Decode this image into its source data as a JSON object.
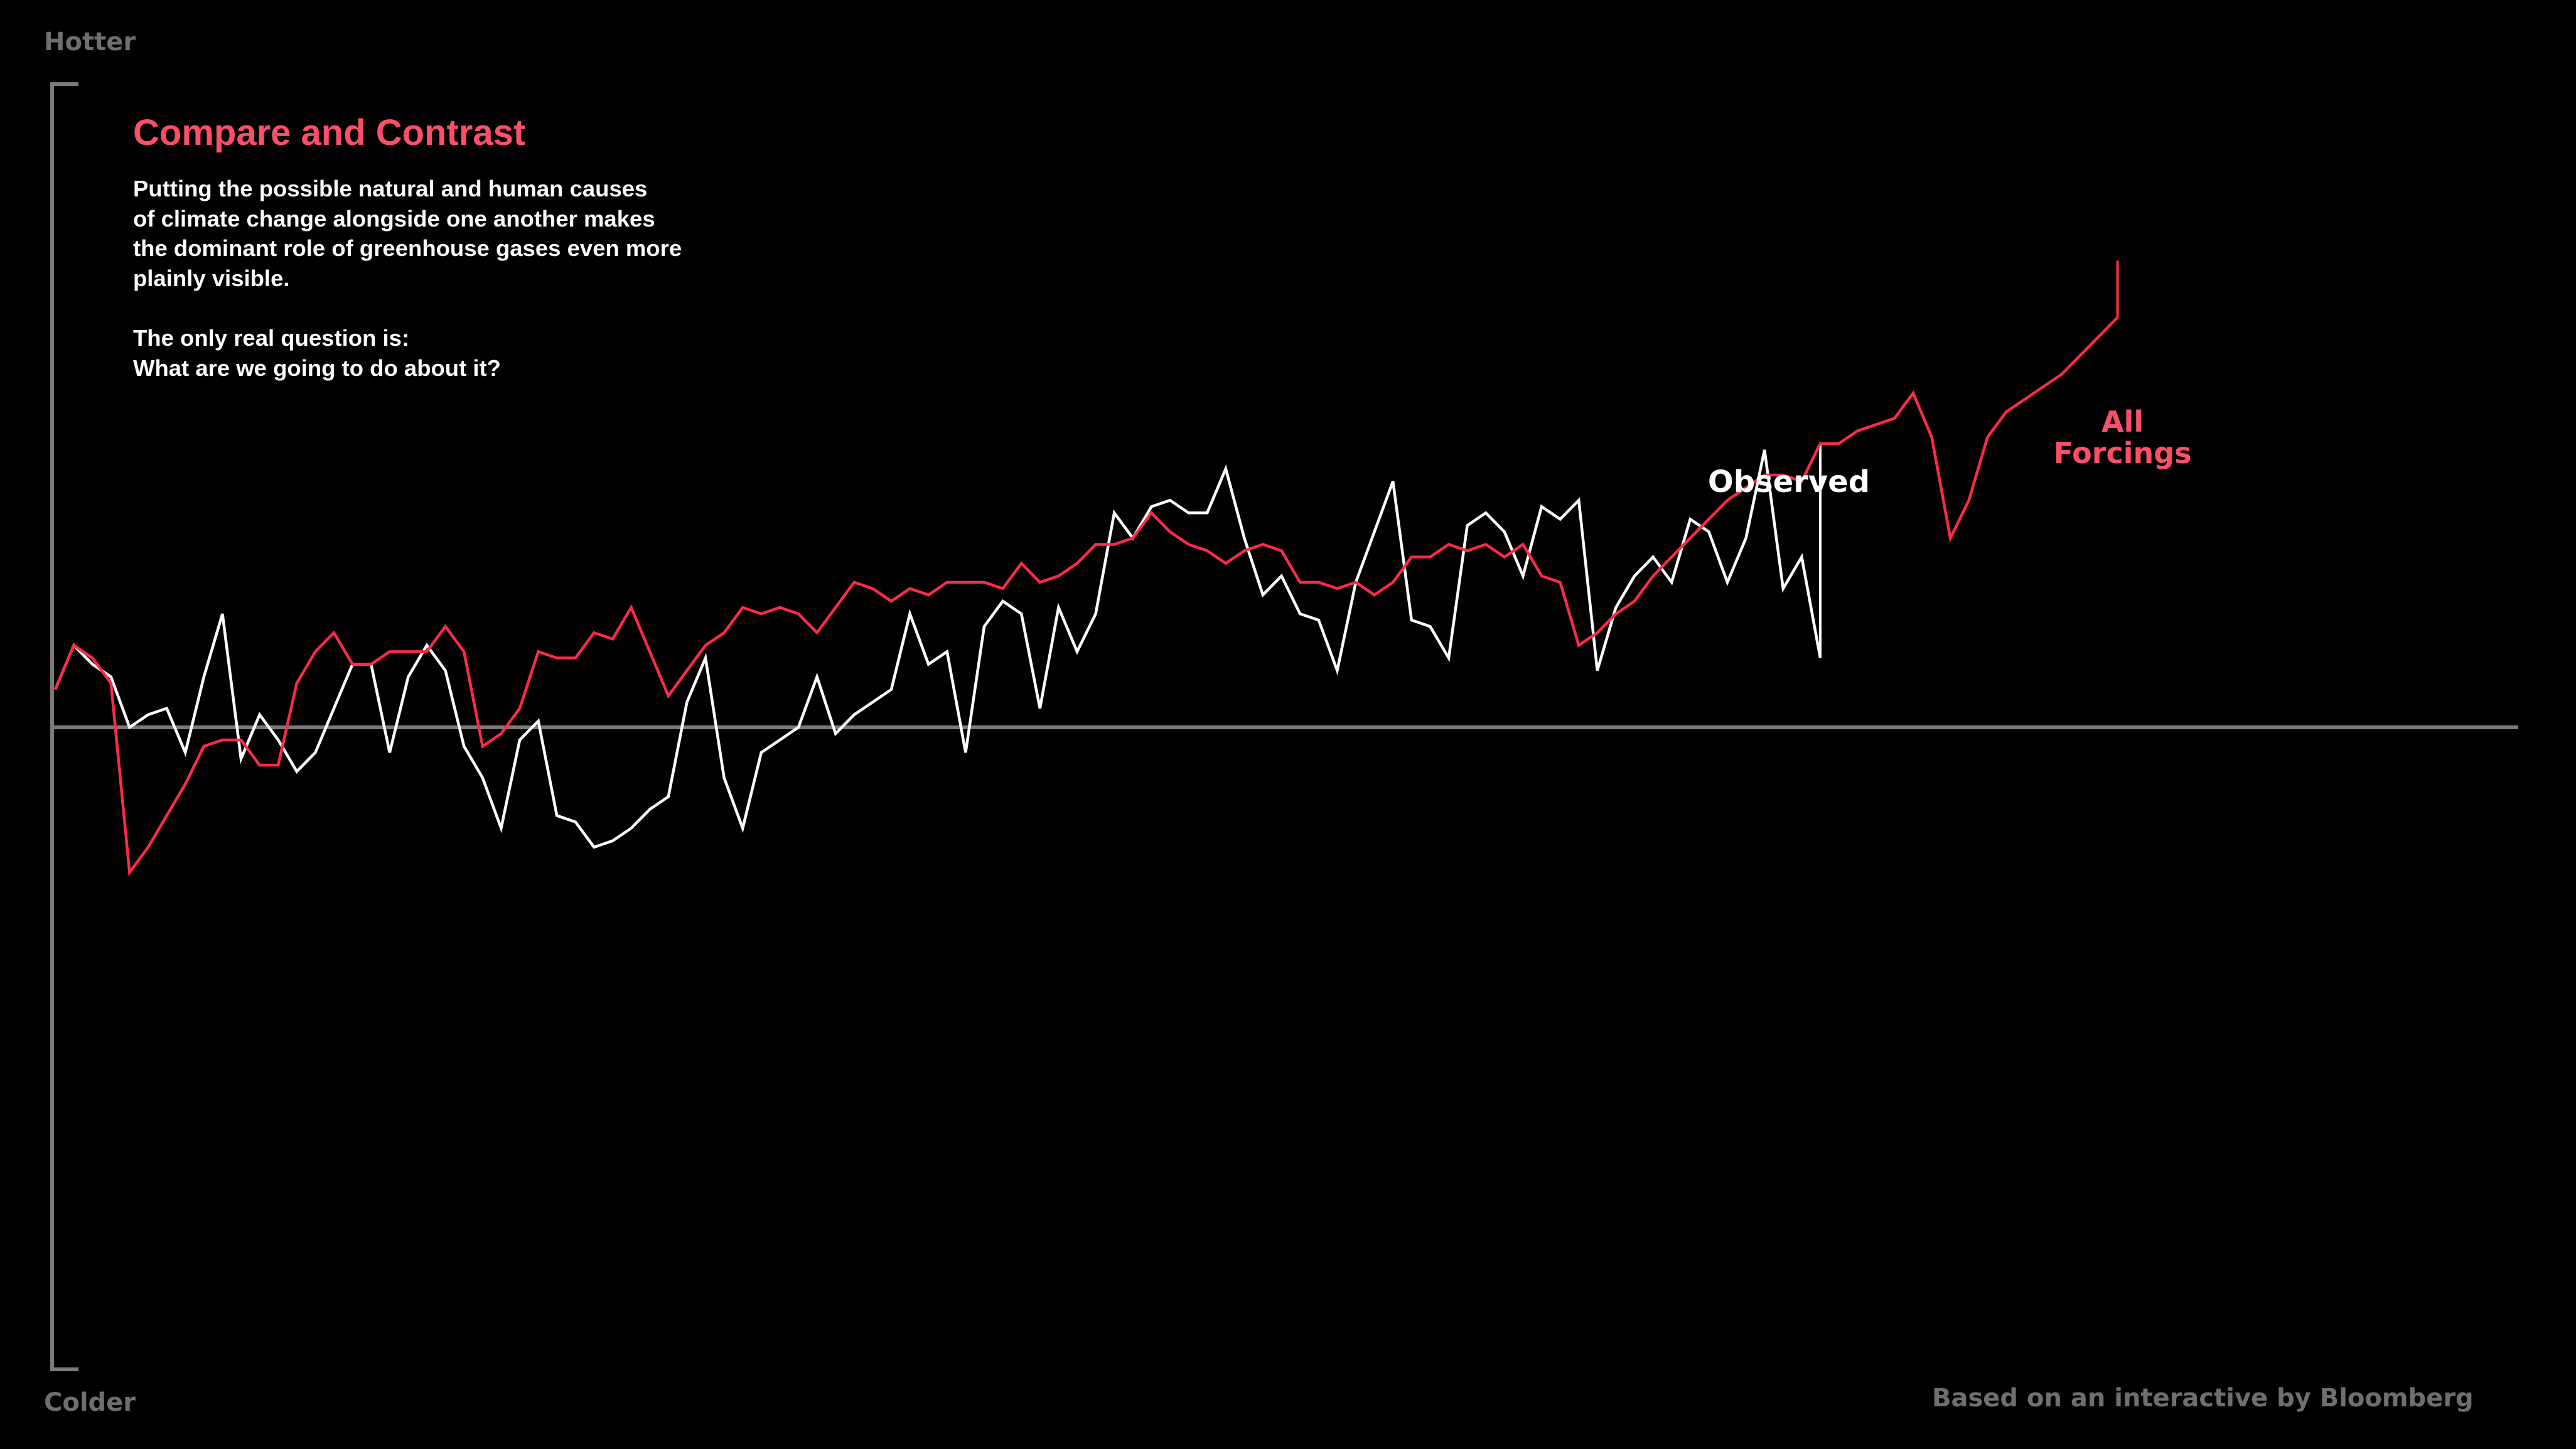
{
  "labels": {
    "hotter": "Hotter",
    "colder": "Colder"
  },
  "text": {
    "title": "Compare and Contrast",
    "paragraph1": "Putting the possible natural and human causes\nof climate change alongside one another makes\nthe dominant role of greenhouse gases even more\nplainly visible.",
    "paragraph2": "The only real question is:\nWhat are we going to do about it?",
    "credit": "Based on an interactive by Bloomberg"
  },
  "colors": {
    "background": "#000000",
    "observed": "#ffffff",
    "all_forcings": "#ff2a4a",
    "title": "#ff4e6a",
    "axis": "#7a7a7a",
    "muted_text": "#6f6f6f"
  },
  "chart_data": {
    "type": "line",
    "grid": false,
    "legend": "inline labels at line ends",
    "ylim": [
      -1,
      1
    ],
    "series": [
      {
        "name": "Observed",
        "values": [
          0.06,
          0.13,
          0.1,
          0.08,
          0.0,
          0.02,
          0.03,
          -0.04,
          0.08,
          0.18,
          -0.05,
          0.02,
          -0.02,
          -0.07,
          -0.04,
          0.03,
          0.1,
          0.1,
          -0.04,
          0.08,
          0.13,
          0.09,
          -0.03,
          -0.08,
          -0.16,
          -0.02,
          0.01,
          -0.14,
          -0.15,
          -0.19,
          -0.18,
          -0.16,
          -0.13,
          -0.11,
          0.04,
          0.11,
          -0.08,
          -0.16,
          -0.04,
          -0.02,
          0.0,
          0.08,
          -0.01,
          0.02,
          0.04,
          0.06,
          0.18,
          0.1,
          0.12,
          -0.04,
          0.16,
          0.2,
          0.18,
          0.03,
          0.19,
          0.12,
          0.18,
          0.34,
          0.3,
          0.35,
          0.36,
          0.34,
          0.34,
          0.41,
          0.3,
          0.21,
          0.24,
          0.18,
          0.17,
          0.09,
          0.23,
          0.31,
          0.39,
          0.17,
          0.16,
          0.11,
          0.32,
          0.34,
          0.31,
          0.24,
          0.35,
          0.33,
          0.36,
          0.09,
          0.19,
          0.24,
          0.27,
          0.23,
          0.33,
          0.31,
          0.23,
          0.3,
          0.44,
          0.22,
          0.27,
          0.11
        ]
      },
      {
        "name": "All Forcings",
        "values": [
          0.06,
          0.13,
          0.11,
          0.07,
          -0.23,
          -0.19,
          -0.14,
          -0.09,
          -0.03,
          -0.02,
          -0.02,
          -0.06,
          -0.06,
          0.07,
          0.12,
          0.15,
          0.1,
          0.1,
          0.12,
          0.12,
          0.12,
          0.16,
          0.12,
          -0.03,
          -0.01,
          0.03,
          0.12,
          0.11,
          0.11,
          0.15,
          0.14,
          0.19,
          0.12,
          0.05,
          0.09,
          0.13,
          0.15,
          0.19,
          0.18,
          0.19,
          0.18,
          0.15,
          0.19,
          0.23,
          0.22,
          0.2,
          0.22,
          0.21,
          0.23,
          0.23,
          0.23,
          0.22,
          0.26,
          0.23,
          0.24,
          0.26,
          0.29,
          0.29,
          0.3,
          0.34,
          0.31,
          0.29,
          0.28,
          0.26,
          0.28,
          0.29,
          0.28,
          0.23,
          0.23,
          0.22,
          0.23,
          0.21,
          0.23,
          0.27,
          0.27,
          0.29,
          0.28,
          0.29,
          0.27,
          0.29,
          0.24,
          0.23,
          0.13,
          0.15,
          0.18,
          0.2,
          0.24,
          0.27,
          0.3,
          0.33,
          0.36,
          0.38,
          0.4,
          0.4,
          0.39,
          0.45,
          0.45,
          0.47,
          0.48,
          0.49,
          0.53,
          0.46,
          0.3,
          0.36,
          0.46,
          0.5,
          0.52,
          0.54,
          0.56,
          0.59,
          0.62,
          0.65
        ]
      }
    ],
    "annotations": [
      "Observed",
      "All Forcings"
    ]
  }
}
